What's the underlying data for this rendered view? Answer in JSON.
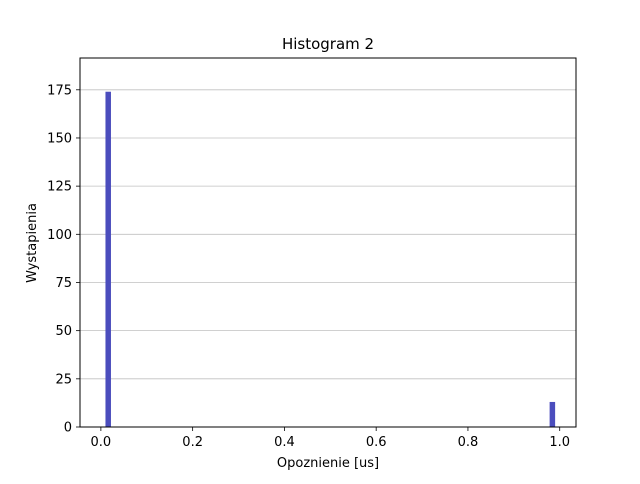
{
  "colors": {
    "bar": "#4b4dbd",
    "grid": "#c0c0c0",
    "axis": "#000000"
  },
  "chart_data": {
    "type": "bar",
    "title": "Histogram 2",
    "xlabel": "Opoznienie [us]",
    "ylabel": "Wystapienia",
    "xlim": [
      -0.0455,
      1.0355
    ],
    "ylim": [
      0,
      191.5
    ],
    "xticks": [
      0.0,
      0.2,
      0.4,
      0.6,
      0.8,
      1.0
    ],
    "xtick_labels": [
      "0.0",
      "0.2",
      "0.4",
      "0.6",
      "0.8",
      "1.0"
    ],
    "yticks": [
      0,
      25,
      50,
      75,
      100,
      125,
      150,
      175
    ],
    "ytick_labels": [
      "0",
      "25",
      "50",
      "75",
      "100",
      "125",
      "150",
      "175"
    ],
    "grid": "y-major",
    "legend": "none",
    "bars": [
      {
        "x_start": 0.01,
        "x_end": 0.022,
        "count": 174
      },
      {
        "x_start": 0.978,
        "x_end": 0.99,
        "count": 13
      }
    ]
  }
}
